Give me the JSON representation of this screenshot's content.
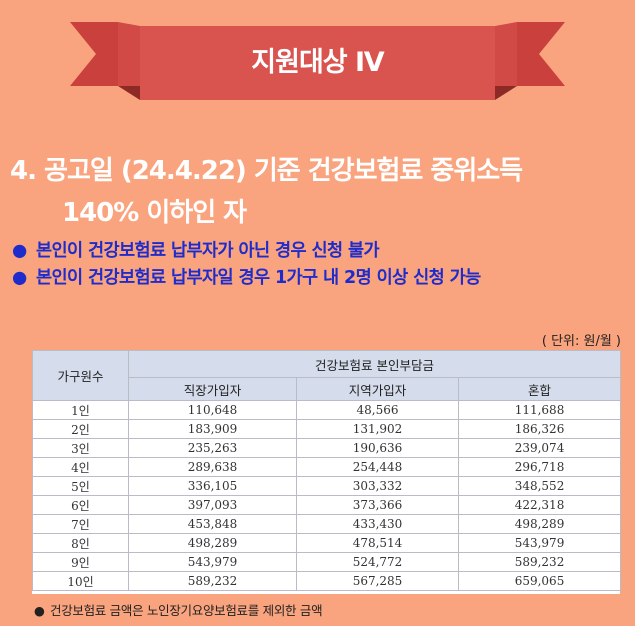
{
  "banner": {
    "title": "지원대상 Ⅳ"
  },
  "heading": {
    "line1": "4. 공고일 (24.4.22) 기준 건강보험료 중위소득",
    "line2": "140% 이하인 자"
  },
  "bullets": [
    "본인이 건강보험료 납부자가 아닌 경우 신청 불가",
    "본인이 건강보험료 납부자일 경우 1가구 내 2명 이상 신청 가능"
  ],
  "unit": "( 단위: 원/월 )",
  "table": {
    "col_household": "가구원수",
    "group_header": "건강보험료 본인부담금",
    "columns": [
      "직장가입자",
      "지역가입자",
      "혼합"
    ],
    "rows": [
      {
        "label": "1인",
        "values": [
          "110,648",
          "48,566",
          "111,688"
        ]
      },
      {
        "label": "2인",
        "values": [
          "183,909",
          "131,902",
          "186,326"
        ]
      },
      {
        "label": "3인",
        "values": [
          "235,263",
          "190,636",
          "239,074"
        ]
      },
      {
        "label": "4인",
        "values": [
          "289,638",
          "254,448",
          "296,718"
        ]
      },
      {
        "label": "5인",
        "values": [
          "336,105",
          "303,332",
          "348,552"
        ]
      },
      {
        "label": "6인",
        "values": [
          "397,093",
          "373,366",
          "422,318"
        ]
      },
      {
        "label": "7인",
        "values": [
          "453,848",
          "433,430",
          "498,289"
        ]
      },
      {
        "label": "8인",
        "values": [
          "498,289",
          "478,514",
          "543,979"
        ]
      },
      {
        "label": "9인",
        "values": [
          "543,979",
          "524,772",
          "589,232"
        ]
      },
      {
        "label": "10인",
        "values": [
          "589,232",
          "567,285",
          "659,065"
        ]
      }
    ]
  },
  "note": "건강보험료 금액은 노인장기요양보험료를 제외한 금액",
  "colors": {
    "background": "#F9A47E",
    "banner": "#D9534F",
    "banner_fold": "#8E2A26",
    "bullet_text": "#1F2CCB",
    "table_header": "#D5DCEB"
  }
}
